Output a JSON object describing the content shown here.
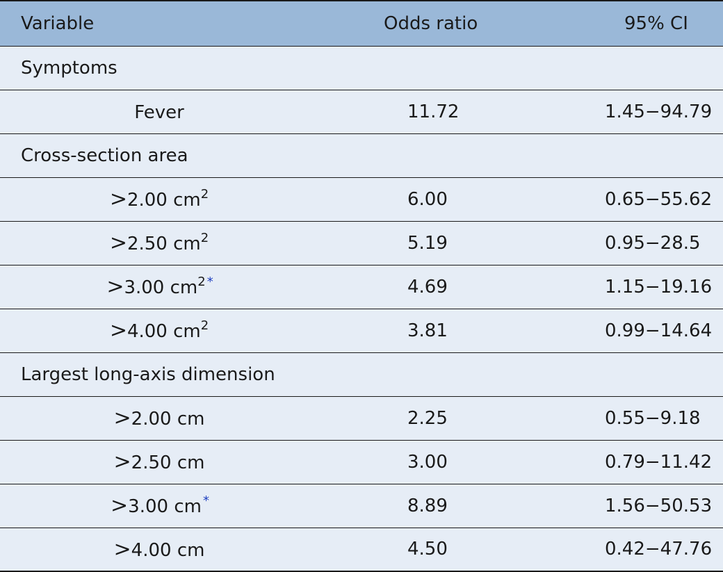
{
  "table": {
    "headers": {
      "variable": "Variable",
      "odds_ratio": "Odds ratio",
      "ci": "95% CI"
    },
    "sections": [
      {
        "label": "Symptoms",
        "rows": [
          {
            "prefix": "",
            "value": "Fever",
            "sup": "",
            "star": "",
            "or": "11.72",
            "ci": "1.45−94.79"
          }
        ]
      },
      {
        "label": "Cross-section area",
        "rows": [
          {
            "prefix": ">",
            "value": "2.00 cm",
            "sup": "2",
            "star": "",
            "or": "6.00",
            "ci": "0.65−55.62"
          },
          {
            "prefix": ">",
            "value": "2.50 cm",
            "sup": "2",
            "star": "",
            "or": "5.19",
            "ci": "0.95−28.5"
          },
          {
            "prefix": ">",
            "value": "3.00 cm",
            "sup": "2",
            "star": "*",
            "or": "4.69",
            "ci": "1.15−19.16"
          },
          {
            "prefix": ">",
            "value": "4.00 cm",
            "sup": "2",
            "star": "",
            "or": "3.81",
            "ci": "0.99−14.64"
          }
        ]
      },
      {
        "label": "Largest long-axis dimension",
        "rows": [
          {
            "prefix": ">",
            "value": "2.00 cm",
            "sup": "",
            "star": "",
            "or": "2.25",
            "ci": "0.55−9.18"
          },
          {
            "prefix": ">",
            "value": "2.50 cm",
            "sup": "",
            "star": "",
            "or": "3.00",
            "ci": "0.79−11.42"
          },
          {
            "prefix": ">",
            "value": "3.00 cm",
            "sup": "",
            "star": "*",
            "or": "8.89",
            "ci": "1.56−50.53"
          },
          {
            "prefix": ">",
            "value": "4.00 cm",
            "sup": "",
            "star": "",
            "or": "4.50",
            "ci": "0.42−47.76"
          }
        ]
      }
    ]
  }
}
